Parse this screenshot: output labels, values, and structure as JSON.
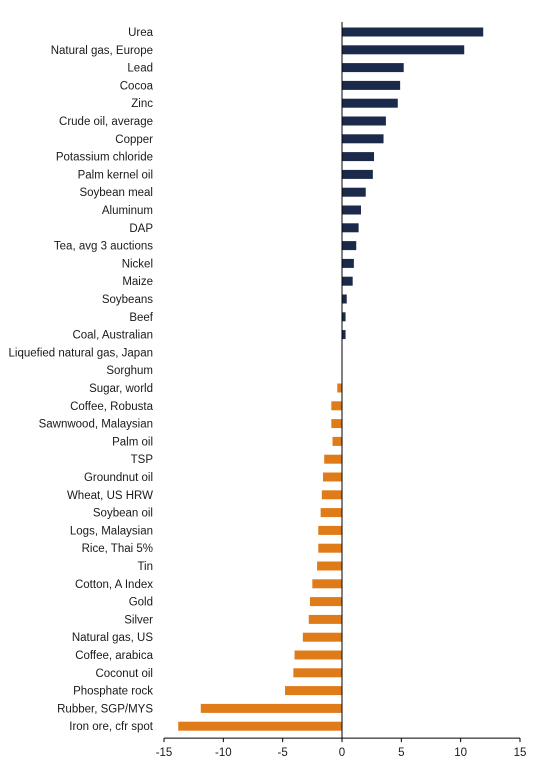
{
  "chart_data": {
    "type": "bar",
    "orientation": "horizontal",
    "title": "",
    "xlabel": "",
    "ylabel": "",
    "xlim": [
      -15,
      15
    ],
    "xticks": [
      -15,
      -10,
      -5,
      0,
      5,
      10,
      15
    ],
    "grid": false,
    "legend": "none",
    "colors": {
      "positive": "#1b2a4a",
      "negative": "#e07b1a",
      "axis": "#000000"
    },
    "categories": [
      "Urea",
      "Natural gas, Europe",
      "Lead",
      "Cocoa",
      "Zinc",
      "Crude oil, average",
      "Copper",
      "Potassium chloride",
      "Palm kernel oil",
      "Soybean meal",
      "Aluminum",
      "DAP",
      "Tea, avg 3 auctions",
      "Nickel",
      "Maize",
      "Soybeans",
      "Beef",
      "Coal, Australian",
      "Liquefied natural gas, Japan",
      "Sorghum",
      "Sugar, world",
      "Coffee, Robusta",
      "Sawnwood, Malaysian",
      "Palm oil",
      "TSP",
      "Groundnut oil",
      "Wheat, US HRW",
      "Soybean oil",
      "Logs, Malaysian",
      "Rice, Thai 5%",
      "Tin",
      "Cotton, A Index",
      "Gold",
      "Silver",
      "Natural gas, US",
      "Coffee, arabica",
      "Coconut oil",
      "Phosphate rock",
      "Rubber, SGP/MYS",
      "Iron ore, cfr spot"
    ],
    "values": [
      11.9,
      10.3,
      5.2,
      4.9,
      4.7,
      3.7,
      3.5,
      2.7,
      2.6,
      2.0,
      1.6,
      1.4,
      1.2,
      1.0,
      0.9,
      0.4,
      0.3,
      0.3,
      0.0,
      0.0,
      -0.4,
      -0.9,
      -0.9,
      -0.8,
      -1.5,
      -1.6,
      -1.7,
      -1.8,
      -2.0,
      -2.0,
      -2.1,
      -2.5,
      -2.7,
      -2.8,
      -3.3,
      -4.0,
      -4.1,
      -4.8,
      -11.9,
      -13.8
    ]
  }
}
